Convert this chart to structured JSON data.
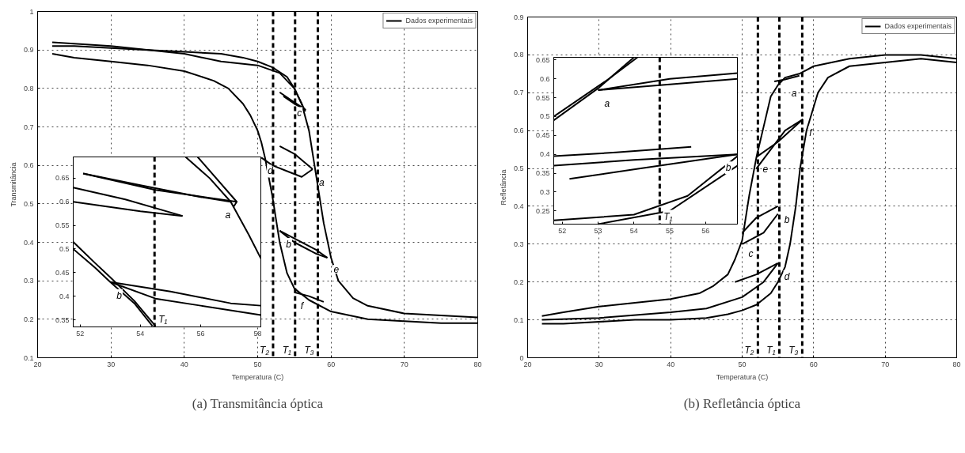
{
  "chart_data": [
    {
      "type": "line",
      "xlabel": "Temperatura (C)",
      "ylabel": "Transmitância",
      "xlim": [
        20,
        80
      ],
      "ylim": [
        0.1,
        1
      ],
      "xticks": [
        20,
        30,
        40,
        50,
        60,
        70,
        80
      ],
      "yticks": [
        0.1,
        0.2,
        0.3,
        0.4,
        0.5,
        0.6,
        0.7,
        0.8,
        0.9,
        1
      ],
      "grid": true,
      "legend": "top right",
      "series": [
        {
          "name": "Dados experimentais",
          "color": "#000000",
          "x": [
            22,
            25,
            30,
            35,
            40,
            45,
            48,
            50,
            52,
            54,
            55,
            56,
            57,
            57.5,
            58,
            59,
            60,
            61,
            63,
            65,
            70,
            75,
            80
          ],
          "values": [
            0.91,
            0.91,
            0.905,
            0.9,
            0.895,
            0.89,
            0.88,
            0.87,
            0.855,
            0.83,
            0.8,
            0.76,
            0.69,
            0.63,
            0.57,
            0.45,
            0.36,
            0.3,
            0.255,
            0.235,
            0.215,
            0.21,
            0.205
          ]
        },
        {
          "color": "#000000",
          "x": [
            80,
            75,
            70,
            65,
            60,
            57,
            55,
            54,
            53,
            52.5,
            52,
            51.5,
            51,
            50.5,
            50,
            49,
            48,
            46,
            44,
            40,
            35,
            30,
            25,
            22
          ],
          "values": [
            0.19,
            0.19,
            0.195,
            0.2,
            0.22,
            0.25,
            0.28,
            0.32,
            0.4,
            0.46,
            0.52,
            0.57,
            0.62,
            0.66,
            0.69,
            0.73,
            0.76,
            0.8,
            0.82,
            0.845,
            0.86,
            0.87,
            0.88,
            0.89
          ]
        },
        {
          "color": "#000000",
          "x": [
            22,
            30,
            40,
            45,
            50,
            53,
            55,
            56.5
          ],
          "values": [
            0.92,
            0.91,
            0.89,
            0.87,
            0.86,
            0.84,
            0.8,
            0.74
          ]
        },
        {
          "color": "#000000",
          "x": [
            53,
            54.5,
            56.5,
            55,
            53.5
          ],
          "values": [
            0.79,
            0.77,
            0.745,
            0.76,
            0.78
          ]
        },
        {
          "color": "#000000",
          "x": [
            50.5,
            52,
            54,
            56,
            57.5
          ],
          "values": [
            0.62,
            0.6,
            0.585,
            0.57,
            0.59
          ]
        },
        {
          "color": "#000000",
          "x": [
            53,
            55,
            57.5
          ],
          "values": [
            0.65,
            0.63,
            0.59
          ]
        },
        {
          "color": "#000000",
          "x": [
            53,
            55,
            58,
            59.5
          ],
          "values": [
            0.43,
            0.41,
            0.38,
            0.36
          ]
        },
        {
          "color": "#000000",
          "x": [
            53,
            55,
            58,
            59.5
          ],
          "values": [
            0.43,
            0.4,
            0.37,
            0.36
          ]
        },
        {
          "color": "#000000",
          "x": [
            55,
            57,
            59
          ],
          "values": [
            0.27,
            0.26,
            0.245
          ]
        }
      ],
      "ref_lines": [
        {
          "axis": "x",
          "value": 52.1,
          "label": "T₂",
          "color": "#000000",
          "line_style": "dashed"
        },
        {
          "axis": "x",
          "value": 55.1,
          "label": "T₁",
          "color": "#000000",
          "line_style": "dashed"
        },
        {
          "axis": "x",
          "value": 58.2,
          "label": "T₃",
          "color": "#000000",
          "line_style": "dashed"
        }
      ],
      "annotations": [
        {
          "text": "c",
          "x": 54.5,
          "y": 0.77
        },
        {
          "text": "d",
          "x": 50.5,
          "y": 0.62
        },
        {
          "text": "a",
          "x": 57.5,
          "y": 0.59
        },
        {
          "text": "b",
          "x": 53,
          "y": 0.43
        },
        {
          "text": "e",
          "x": 59.5,
          "y": 0.36
        },
        {
          "text": "f",
          "x": 55,
          "y": 0.27
        },
        "(a) Transmitância óptica"
      ]
    },
    {
      "type": "line",
      "xlim": [
        51.77,
        58
      ],
      "ylim": [
        0.335,
        0.695
      ],
      "xticks": [
        52,
        54,
        56,
        58
      ],
      "yticks": [
        0.35,
        0.4,
        0.45,
        0.5,
        0.55,
        0.6,
        0.65
      ],
      "series": [
        {
          "color": "#000000",
          "x": [
            51.77,
            52.5,
            53,
            53.8,
            54.5
          ],
          "values": [
            0.515,
            0.47,
            0.44,
            0.39,
            0.337
          ]
        },
        {
          "color": "#000000",
          "x": [
            51.77,
            52.5,
            53,
            53.8,
            54.4
          ],
          "values": [
            0.5,
            0.46,
            0.43,
            0.385,
            0.337
          ]
        },
        {
          "color": "#000000",
          "x": [
            55.5,
            56.3,
            57,
            57.6,
            58
          ],
          "values": [
            0.695,
            0.65,
            0.6,
            0.53,
            0.48
          ]
        },
        {
          "color": "#000000",
          "x": [
            55.9,
            57.2,
            57.1
          ],
          "values": [
            0.695,
            0.6,
            0.59
          ]
        },
        {
          "color": "#000000",
          "x": [
            52.1,
            54,
            56,
            57
          ],
          "values": [
            0.66,
            0.635,
            0.61,
            0.6
          ]
        },
        {
          "color": "#000000",
          "x": [
            52.1,
            54.5,
            57.2
          ],
          "values": [
            0.66,
            0.625,
            0.6
          ]
        },
        {
          "color": "#000000",
          "x": [
            51.77,
            53.5,
            55.4
          ],
          "values": [
            0.63,
            0.605,
            0.57
          ]
        },
        {
          "color": "#000000",
          "x": [
            51.77,
            54,
            55.4
          ],
          "values": [
            0.6,
            0.58,
            0.57
          ]
        },
        {
          "color": "#000000",
          "x": [
            53,
            55,
            57,
            58
          ],
          "values": [
            0.43,
            0.41,
            0.385,
            0.38
          ]
        },
        {
          "color": "#000000",
          "x": [
            53,
            54.5,
            56,
            58
          ],
          "values": [
            0.43,
            0.395,
            0.38,
            0.36
          ]
        }
      ],
      "ref_lines": [
        {
          "axis": "x",
          "value": 54.47,
          "label": "T₁",
          "color": "#000000",
          "line_style": "dashed"
        }
      ],
      "annotations": [
        {
          "text": "a",
          "x": 57.2,
          "y": 0.6
        },
        {
          "text": "b",
          "x": 53,
          "y": 0.43
        }
      ]
    },
    {
      "type": "line",
      "xlabel": "Temperatura (C)",
      "ylabel": "Refletância",
      "xlim": [
        20,
        80
      ],
      "ylim": [
        0,
        0.9
      ],
      "xticks": [
        20,
        30,
        40,
        50,
        60,
        70,
        80
      ],
      "yticks": [
        0,
        0.1,
        0.2,
        0.3,
        0.4,
        0.5,
        0.6,
        0.7,
        0.8,
        0.9
      ],
      "grid": true,
      "legend": "top right",
      "series": [
        {
          "name": "Dados experimentais",
          "color": "#000000",
          "x": [
            22,
            25,
            30,
            35,
            40,
            45,
            48,
            50,
            52,
            53,
            54,
            55,
            56,
            56.7,
            57.5,
            58.1,
            59,
            60.6,
            62,
            65,
            70,
            75,
            80
          ],
          "values": [
            0.09,
            0.09,
            0.095,
            0.1,
            0.1,
            0.105,
            0.115,
            0.125,
            0.14,
            0.155,
            0.17,
            0.2,
            0.24,
            0.3,
            0.4,
            0.5,
            0.6,
            0.7,
            0.74,
            0.77,
            0.78,
            0.79,
            0.78
          ]
        },
        {
          "color": "#000000",
          "x": [
            80,
            75,
            70,
            65,
            60,
            58,
            56,
            55,
            54,
            53,
            52.5,
            52,
            51.5,
            51,
            50.5,
            50,
            49,
            48,
            46,
            44,
            40,
            35,
            30,
            25,
            22
          ],
          "values": [
            0.79,
            0.8,
            0.8,
            0.79,
            0.77,
            0.75,
            0.74,
            0.72,
            0.69,
            0.61,
            0.57,
            0.53,
            0.48,
            0.43,
            0.37,
            0.31,
            0.26,
            0.22,
            0.19,
            0.17,
            0.155,
            0.145,
            0.135,
            0.12,
            0.11
          ]
        },
        {
          "color": "#000000",
          "x": [
            22,
            30,
            40,
            45,
            50,
            53,
            55
          ],
          "values": [
            0.1,
            0.105,
            0.12,
            0.13,
            0.16,
            0.2,
            0.25
          ]
        },
        {
          "color": "#000000",
          "x": [
            54.5,
            56,
            58
          ],
          "values": [
            0.73,
            0.735,
            0.745
          ]
        },
        {
          "color": "#000000",
          "x": [
            52,
            54,
            56,
            58.5
          ],
          "values": [
            0.5,
            0.55,
            0.6,
            0.63
          ]
        },
        {
          "color": "#000000",
          "x": [
            52,
            55,
            58.5
          ],
          "values": [
            0.53,
            0.57,
            0.63
          ]
        },
        {
          "color": "#000000",
          "x": [
            50,
            52,
            55
          ],
          "values": [
            0.33,
            0.37,
            0.4
          ]
        },
        {
          "color": "#000000",
          "x": [
            50,
            53,
            55
          ],
          "values": [
            0.3,
            0.33,
            0.38
          ]
        },
        {
          "color": "#000000",
          "x": [
            49,
            52,
            55
          ],
          "values": [
            0.2,
            0.22,
            0.25
          ]
        }
      ],
      "ref_lines": [
        {
          "axis": "x",
          "value": 52.2,
          "label": "T₂",
          "color": "#000000",
          "line_style": "dashed"
        },
        {
          "axis": "x",
          "value": 55.2,
          "label": "T₁",
          "color": "#000000",
          "line_style": "dashed"
        },
        {
          "axis": "x",
          "value": 58.4,
          "label": "T₃",
          "color": "#000000",
          "line_style": "dashed"
        }
      ],
      "annotations": [
        {
          "text": "a",
          "x": 56,
          "y": 0.735
        },
        {
          "text": "f",
          "x": 58.5,
          "y": 0.63
        },
        {
          "text": "e",
          "x": 52,
          "y": 0.53
        },
        {
          "text": "b",
          "x": 55,
          "y": 0.4
        },
        {
          "text": "c",
          "x": 50,
          "y": 0.31
        },
        {
          "text": "d",
          "x": 55,
          "y": 0.25
        },
        "(b) Refletância óptica"
      ]
    },
    {
      "type": "line",
      "xlim": [
        51.76,
        56.89
      ],
      "ylim": [
        0.215,
        0.657
      ],
      "xticks": [
        52,
        53,
        54,
        55,
        56
      ],
      "yticks": [
        0.25,
        0.3,
        0.35,
        0.4,
        0.45,
        0.5,
        0.55,
        0.6,
        0.65
      ],
      "series": [
        {
          "color": "#000000",
          "x": [
            51.76,
            53,
            54
          ],
          "values": [
            0.49,
            0.575,
            0.657
          ]
        },
        {
          "color": "#000000",
          "x": [
            51.76,
            53.3,
            54.1
          ],
          "values": [
            0.5,
            0.6,
            0.657
          ]
        },
        {
          "color": "#000000",
          "x": [
            53,
            55,
            56.89
          ],
          "values": [
            0.57,
            0.6,
            0.615
          ]
        },
        {
          "color": "#000000",
          "x": [
            53,
            55,
            56.89
          ],
          "values": [
            0.57,
            0.585,
            0.6
          ]
        },
        {
          "color": "#000000",
          "x": [
            51.76,
            53.5,
            55.6
          ],
          "values": [
            0.395,
            0.405,
            0.42
          ]
        },
        {
          "color": "#000000",
          "x": [
            51.76,
            54,
            56.89
          ],
          "values": [
            0.37,
            0.385,
            0.4
          ]
        },
        {
          "color": "#000000",
          "x": [
            52.2,
            54,
            56.89
          ],
          "values": [
            0.335,
            0.36,
            0.4
          ]
        },
        {
          "color": "#000000",
          "x": [
            51.76,
            54,
            55.5,
            56.89
          ],
          "values": [
            0.225,
            0.24,
            0.29,
            0.395
          ]
        },
        {
          "color": "#000000",
          "x": [
            53,
            55,
            56.89
          ],
          "values": [
            0.215,
            0.25,
            0.37
          ]
        }
      ],
      "ref_lines": [
        {
          "axis": "x",
          "value": 54.72,
          "label": "T₁",
          "color": "#000000",
          "line_style": "dashed"
        }
      ],
      "annotations": [
        {
          "text": "a",
          "x": 53,
          "y": 0.57
        },
        {
          "text": "b",
          "x": 56.89,
          "y": 0.4
        }
      ]
    }
  ]
}
